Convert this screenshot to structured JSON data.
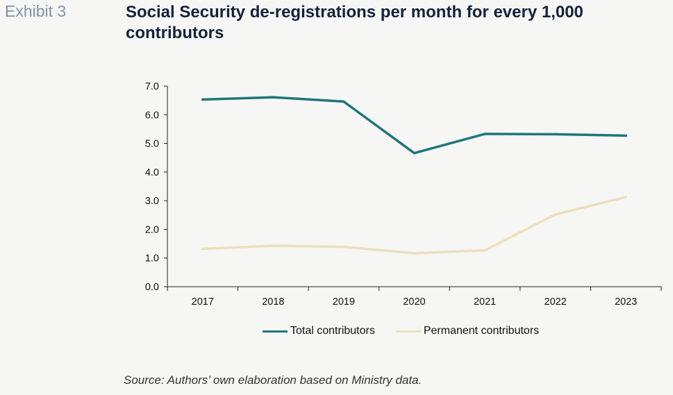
{
  "exhibit_label": "Exhibit 3",
  "title": "Social Security de-registrations per month for every 1,000 contributors",
  "source": "Source: Authors’ own elaboration based on Ministry data.",
  "colors": {
    "total": "#1d7778",
    "permanent": "#ece0bb",
    "axis": "#222222"
  },
  "chart_data": {
    "type": "line",
    "x": [
      "2017",
      "2018",
      "2019",
      "2020",
      "2021",
      "2022",
      "2023"
    ],
    "ylim": [
      0,
      7
    ],
    "yticks": [
      "0.0",
      "1.0",
      "2.0",
      "3.0",
      "4.0",
      "5.0",
      "6.0",
      "7.0"
    ],
    "grid": false,
    "legend_position": "bottom",
    "series": [
      {
        "name": "Total contributors",
        "color": "#1d7778",
        "values": [
          6.53,
          6.61,
          6.46,
          4.66,
          5.33,
          5.32,
          5.27
        ]
      },
      {
        "name": "Permanent contributors",
        "color": "#ece0bb",
        "values": [
          1.32,
          1.43,
          1.39,
          1.17,
          1.27,
          2.52,
          3.13
        ]
      }
    ]
  }
}
